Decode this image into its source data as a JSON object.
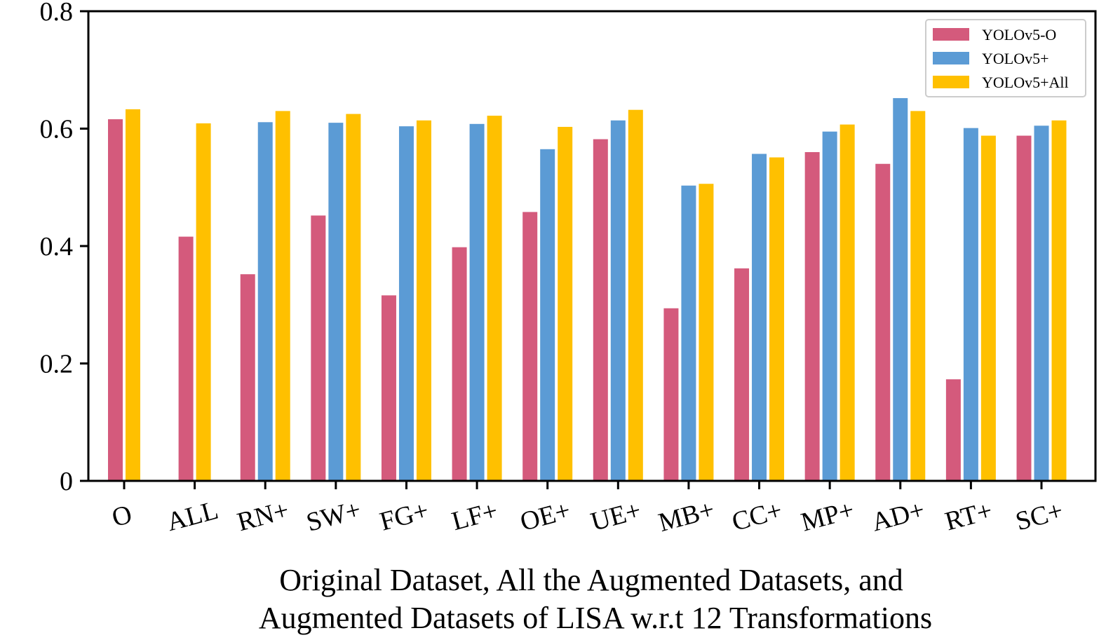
{
  "chart_data": {
    "type": "bar",
    "title": "",
    "xlabel_lines": [
      "Original Dataset, All the Augmented Datasets, and",
      "Augmented Datasets of LISA w.r.t 12 Transformations"
    ],
    "ylabel": "",
    "ylim": [
      0,
      0.8
    ],
    "yticks": [
      "0",
      "0.2",
      "0.4",
      "0.6",
      "0.8"
    ],
    "ytick_values": [
      0,
      0.2,
      0.4,
      0.6,
      0.8
    ],
    "grid": false,
    "legend_position": "top-right",
    "categories": [
      "O",
      "ALL",
      "RN+",
      "SW+",
      "FG+",
      "LF+",
      "OE+",
      "UE+",
      "MB+",
      "CC+",
      "MP+",
      "AD+",
      "RT+",
      "SC+"
    ],
    "series": [
      {
        "name": "YOLOv5-O",
        "color": "#d45a7c",
        "values": [
          0.616,
          0.416,
          0.352,
          0.452,
          0.316,
          0.398,
          0.458,
          0.582,
          0.294,
          0.362,
          0.56,
          0.54,
          0.173,
          0.588
        ]
      },
      {
        "name": "YOLOv5+",
        "color": "#5b9bd5",
        "values": [
          null,
          null,
          0.611,
          0.61,
          0.604,
          0.608,
          0.565,
          0.614,
          0.503,
          0.557,
          0.595,
          0.652,
          0.601,
          0.605
        ]
      },
      {
        "name": "YOLOv5+All",
        "color": "#ffc000",
        "values": [
          0.633,
          0.609,
          0.63,
          0.625,
          0.614,
          0.622,
          0.603,
          0.632,
          0.506,
          0.551,
          0.607,
          0.63,
          0.588,
          0.614
        ]
      }
    ]
  }
}
